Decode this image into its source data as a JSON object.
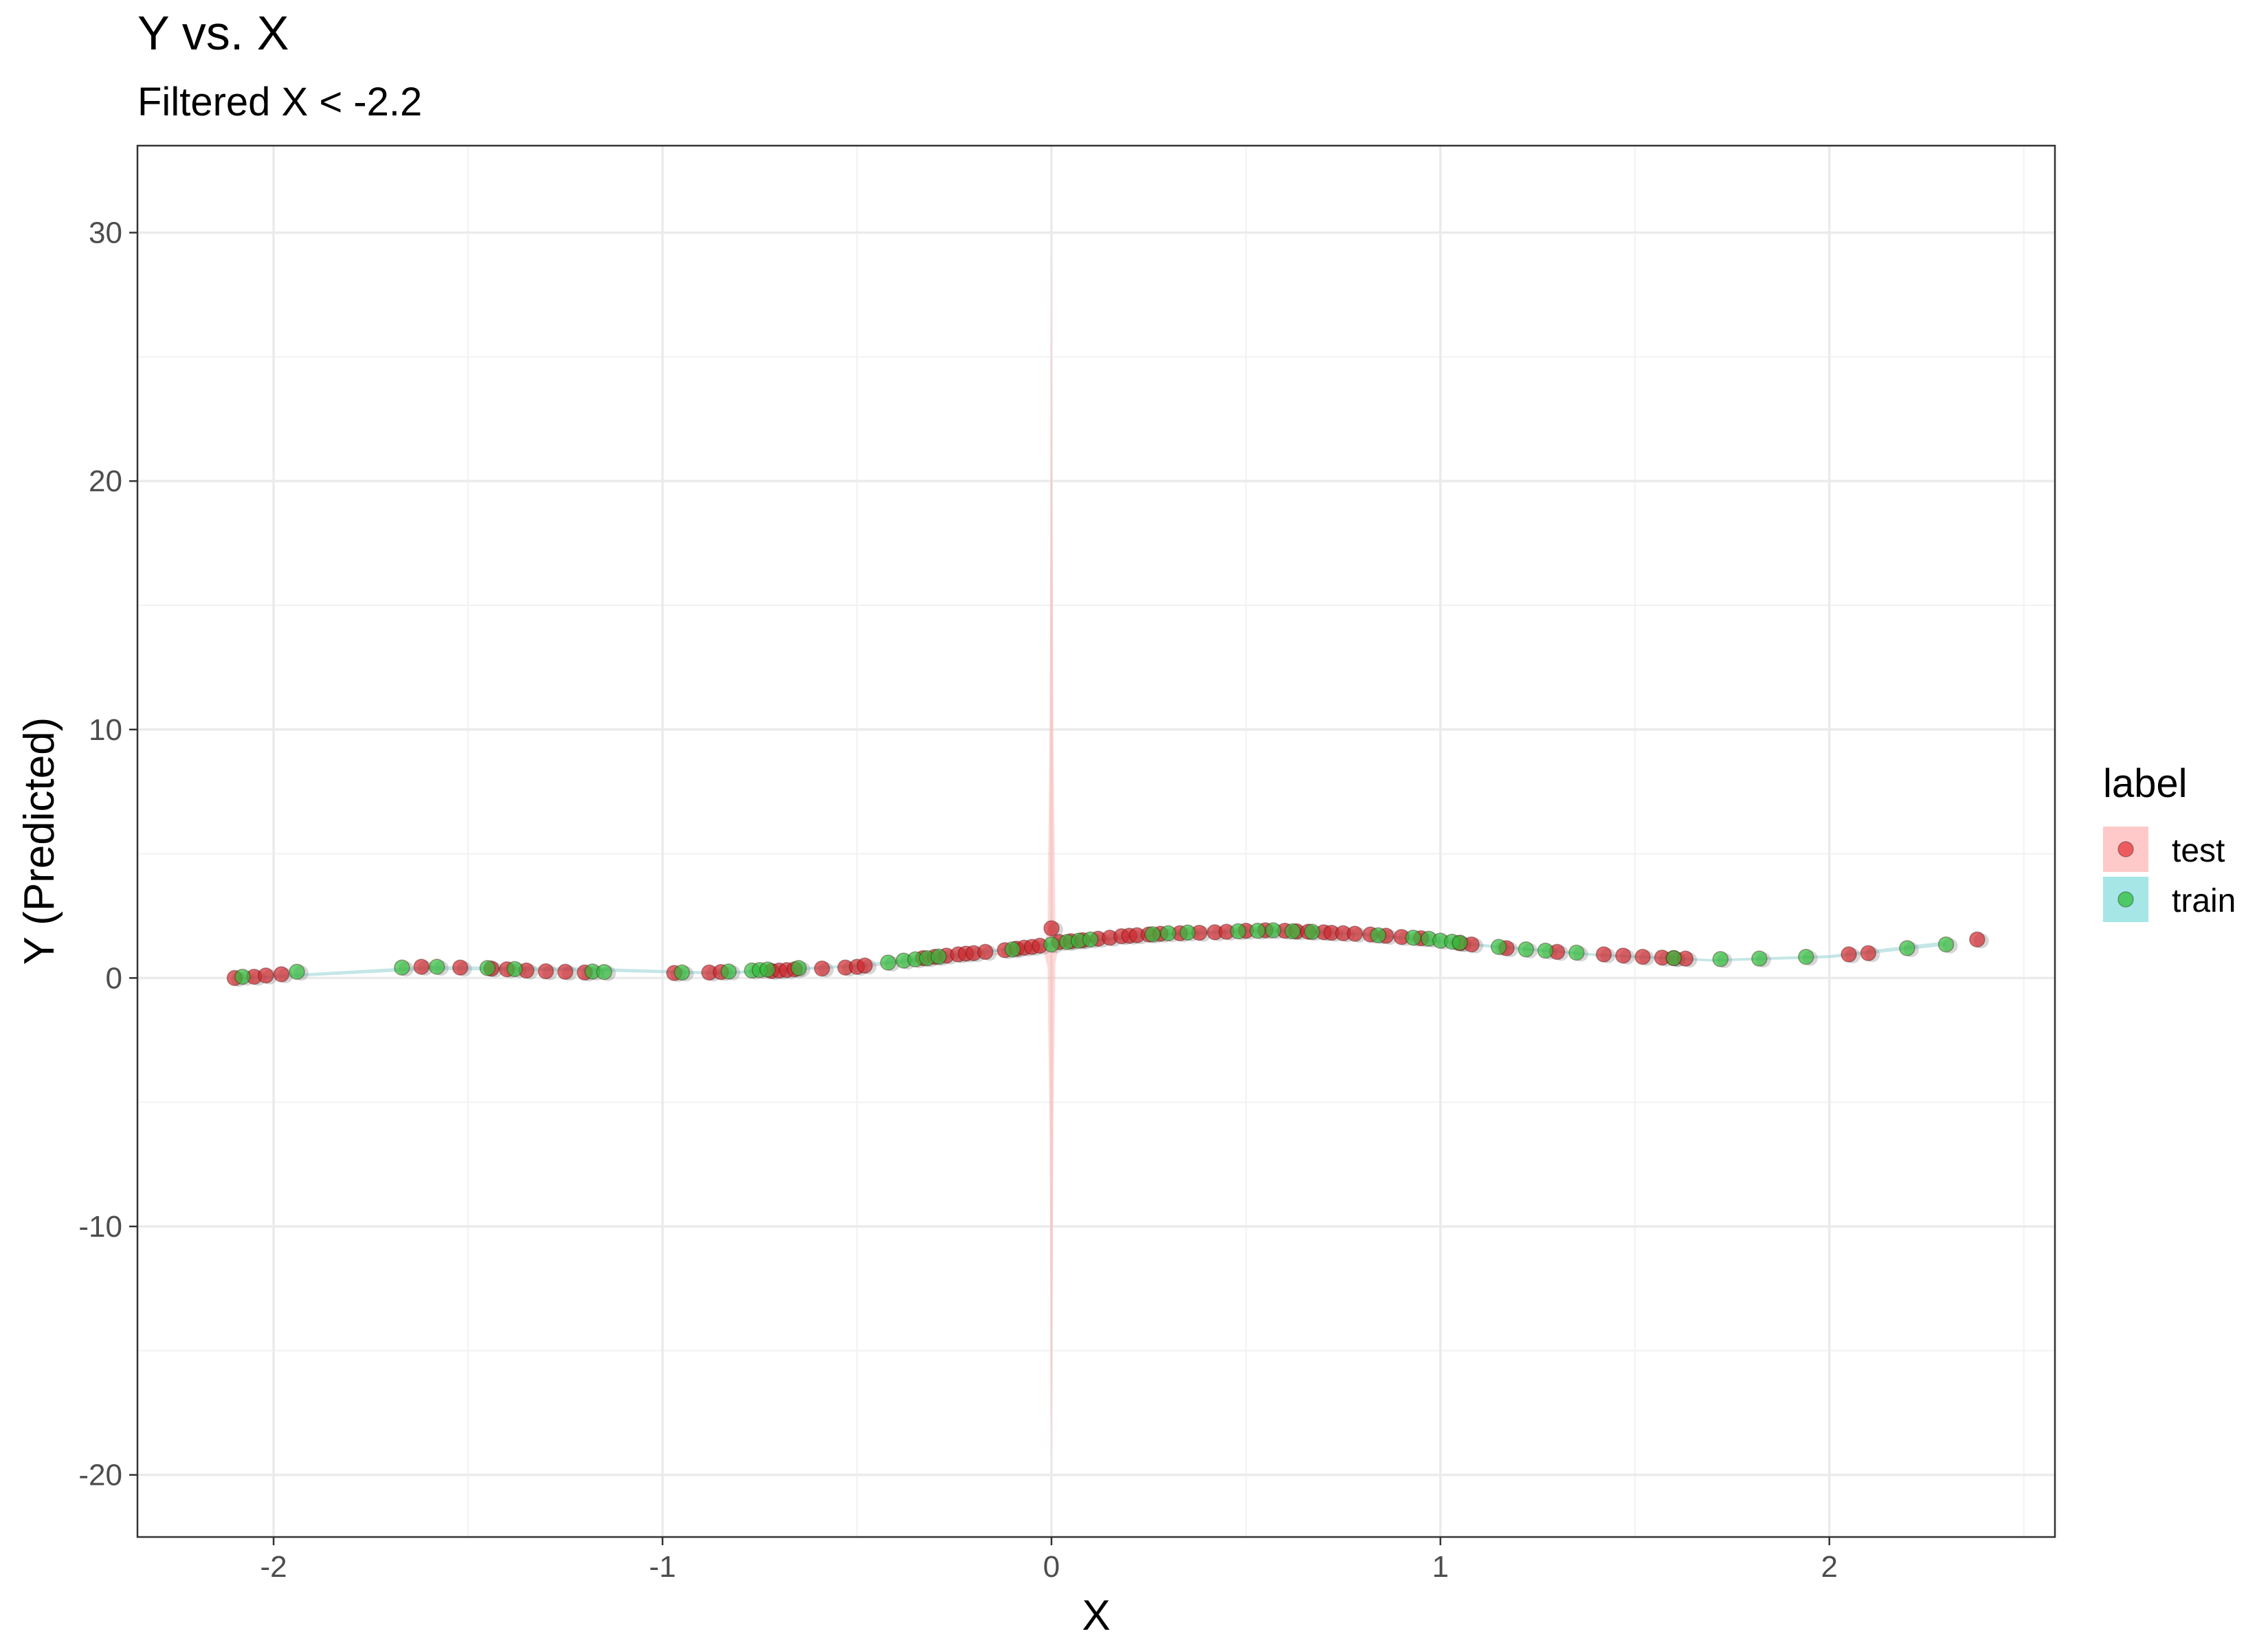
{
  "chart_data": {
    "type": "scatter",
    "title": "Y vs. X",
    "subtitle": "Filtered X < -2.2",
    "xlabel": "X",
    "ylabel": "Y (Predicted)",
    "xlim": [
      -2.35,
      2.58
    ],
    "ylim": [
      -22.5,
      33.5
    ],
    "x_ticks": [
      -2,
      -1,
      0,
      1,
      2
    ],
    "x_tick_labels": [
      "-2",
      "-1",
      "0",
      "1",
      "2"
    ],
    "y_ticks": [
      -20,
      -10,
      0,
      10,
      20,
      30
    ],
    "y_tick_labels": [
      "-20",
      "-10",
      "0",
      "10",
      "20",
      "30"
    ],
    "grid": true,
    "legend": {
      "title": "label",
      "position": "right",
      "entries": [
        {
          "name": "test",
          "point_color": "#e8353a",
          "band_color": "#ffc9c9"
        },
        {
          "name": "train",
          "point_color": "#2fbf3a",
          "band_color": "#a6e6e6"
        }
      ]
    },
    "bands": [
      {
        "name": "test",
        "color": "#ff8f8f",
        "opacity": 0.35,
        "points": [
          [
            -0.5,
            0.45
          ],
          [
            -0.2,
            0.9
          ],
          [
            -0.05,
            1.15
          ],
          [
            -0.02,
            1.25
          ],
          [
            -0.01,
            2.0
          ],
          [
            -0.005,
            10
          ],
          [
            -0.002,
            20
          ],
          [
            0.0,
            30.5
          ],
          [
            0.002,
            20
          ],
          [
            0.005,
            10
          ],
          [
            0.01,
            2.2
          ],
          [
            0.02,
            1.45
          ],
          [
            0.05,
            1.5
          ],
          [
            0.2,
            1.7
          ],
          [
            0.35,
            1.85
          ],
          [
            0.35,
            1.75
          ],
          [
            0.2,
            1.6
          ],
          [
            0.05,
            1.4
          ],
          [
            0.02,
            1.35
          ],
          [
            0.01,
            0.6
          ],
          [
            0.005,
            -6
          ],
          [
            0.002,
            -15
          ],
          [
            0.0,
            -20
          ],
          [
            -0.002,
            -15
          ],
          [
            -0.005,
            -6
          ],
          [
            -0.01,
            0.4
          ],
          [
            -0.02,
            1.1
          ],
          [
            -0.05,
            1.05
          ],
          [
            -0.2,
            0.85
          ],
          [
            -0.5,
            0.4
          ]
        ]
      },
      {
        "name": "train",
        "color": "#9fd6d6",
        "opacity": 0.6,
        "points": [
          [
            -2.1,
            0.02
          ],
          [
            -1.6,
            0.48
          ],
          [
            -1.2,
            0.42
          ],
          [
            -0.85,
            0.25
          ],
          [
            -0.5,
            0.55
          ],
          [
            -0.2,
            1.05
          ],
          [
            0.0,
            1.42
          ],
          [
            0.3,
            1.82
          ],
          [
            0.55,
            1.98
          ],
          [
            0.8,
            1.82
          ],
          [
            1.1,
            1.38
          ],
          [
            1.4,
            0.98
          ],
          [
            1.7,
            0.76
          ],
          [
            2.0,
            0.92
          ],
          [
            2.3,
            1.48
          ],
          [
            2.3,
            1.3
          ],
          [
            2.0,
            0.8
          ],
          [
            1.7,
            0.66
          ],
          [
            1.4,
            0.88
          ],
          [
            1.1,
            1.26
          ],
          [
            0.8,
            1.7
          ],
          [
            0.55,
            1.86
          ],
          [
            0.3,
            1.7
          ],
          [
            0.0,
            1.3
          ],
          [
            -0.2,
            0.93
          ],
          [
            -0.5,
            0.43
          ],
          [
            -0.85,
            0.13
          ],
          [
            -1.2,
            0.28
          ],
          [
            -1.6,
            0.32
          ],
          [
            -2.1,
            -0.08
          ]
        ]
      }
    ],
    "series": [
      {
        "name": "test",
        "color": "#d0282d",
        "x": [
          -2.1,
          -2.05,
          -2.02,
          -1.98,
          -1.62,
          -1.52,
          -1.44,
          -1.4,
          -1.35,
          -1.3,
          -1.25,
          -1.2,
          -0.97,
          -0.88,
          -0.85,
          -0.72,
          -0.7,
          -0.68,
          -0.66,
          -0.59,
          -0.53,
          -0.5,
          -0.48,
          -0.33,
          -0.3,
          -0.27,
          -0.24,
          -0.22,
          -0.2,
          -0.17,
          -0.12,
          -0.09,
          -0.07,
          -0.05,
          -0.03,
          0.0,
          0.02,
          0.05,
          0.08,
          0.12,
          0.15,
          0.18,
          0.2,
          0.22,
          0.25,
          0.28,
          0.33,
          0.38,
          0.42,
          0.45,
          0.5,
          0.55,
          0.6,
          0.63,
          0.66,
          0.7,
          0.72,
          0.75,
          0.78,
          0.82,
          0.86,
          0.9,
          0.95,
          1.05,
          1.08,
          1.17,
          1.3,
          1.42,
          1.47,
          1.52,
          1.57,
          1.6,
          1.63,
          2.05,
          2.1,
          2.38
        ],
        "y": [
          0.0,
          0.05,
          0.1,
          0.15,
          0.45,
          0.42,
          0.38,
          0.35,
          0.3,
          0.27,
          0.25,
          0.22,
          0.2,
          0.22,
          0.24,
          0.28,
          0.3,
          0.32,
          0.35,
          0.38,
          0.42,
          0.45,
          0.5,
          0.8,
          0.85,
          0.9,
          0.95,
          0.98,
          1.0,
          1.05,
          1.12,
          1.18,
          1.22,
          1.25,
          1.3,
          2.0,
          1.45,
          1.48,
          1.52,
          1.58,
          1.62,
          1.68,
          1.7,
          1.72,
          1.75,
          1.78,
          1.8,
          1.82,
          1.84,
          1.86,
          1.9,
          1.92,
          1.9,
          1.88,
          1.86,
          1.84,
          1.82,
          1.8,
          1.78,
          1.75,
          1.7,
          1.65,
          1.6,
          1.4,
          1.35,
          1.2,
          1.05,
          0.95,
          0.9,
          0.85,
          0.82,
          0.8,
          0.78,
          0.95,
          1.0,
          1.55
        ]
      },
      {
        "name": "train",
        "color": "#2fbf3a",
        "x": [
          -2.08,
          -1.94,
          -1.67,
          -1.58,
          -1.45,
          -1.38,
          -1.18,
          -1.15,
          -0.95,
          -0.83,
          -0.77,
          -0.75,
          -0.73,
          -0.65,
          -0.42,
          -0.38,
          -0.35,
          -0.32,
          -0.29,
          -0.1,
          0.0,
          0.04,
          0.07,
          0.1,
          0.26,
          0.3,
          0.35,
          0.48,
          0.53,
          0.57,
          0.62,
          0.67,
          0.84,
          0.93,
          0.97,
          1.0,
          1.03,
          1.05,
          1.15,
          1.22,
          1.27,
          1.35,
          1.6,
          1.72,
          1.82,
          1.94,
          2.2,
          2.3
        ],
        "y": [
          0.05,
          0.25,
          0.42,
          0.45,
          0.4,
          0.36,
          0.26,
          0.24,
          0.22,
          0.26,
          0.3,
          0.32,
          0.34,
          0.4,
          0.62,
          0.7,
          0.75,
          0.8,
          0.86,
          1.15,
          1.35,
          1.45,
          1.5,
          1.55,
          1.76,
          1.8,
          1.83,
          1.88,
          1.9,
          1.92,
          1.88,
          1.86,
          1.72,
          1.62,
          1.58,
          1.5,
          1.46,
          1.42,
          1.25,
          1.15,
          1.1,
          1.02,
          0.8,
          0.76,
          0.78,
          0.85,
          1.2,
          1.35
        ]
      }
    ]
  }
}
